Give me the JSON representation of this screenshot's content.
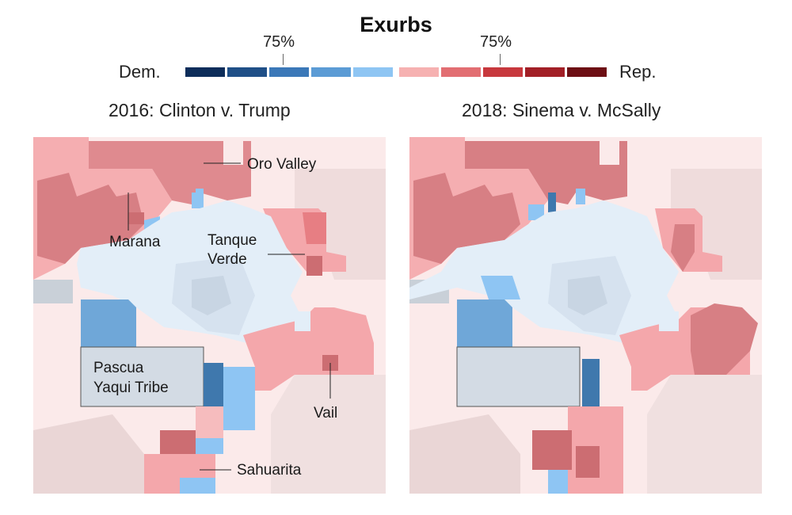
{
  "title": "Exurbs",
  "legend": {
    "left_label": "Dem.",
    "right_label": "Rep.",
    "left_pct": "75%",
    "right_pct": "75%",
    "colors": [
      "#0d2d5a",
      "#1f4f87",
      "#3b78b8",
      "#5b9bd5",
      "#8ec5f3",
      "#f6b1b1",
      "#e26e72",
      "#c7383d",
      "#a21f26",
      "#6d0f14"
    ]
  },
  "maps": [
    {
      "subtitle": "2016: Clinton v. Trump",
      "labels": {
        "oro_valley": "Oro Valley",
        "marana": "Marana",
        "tanque_verde_1": "Tanque",
        "tanque_verde_2": "Verde",
        "pascua_1": "Pascua",
        "pascua_2": "Yaqui Tribe",
        "vail": "Vail",
        "sahuarita": "Sahuarita"
      }
    },
    {
      "subtitle": "2018: Sinema v. McSally"
    }
  ]
}
